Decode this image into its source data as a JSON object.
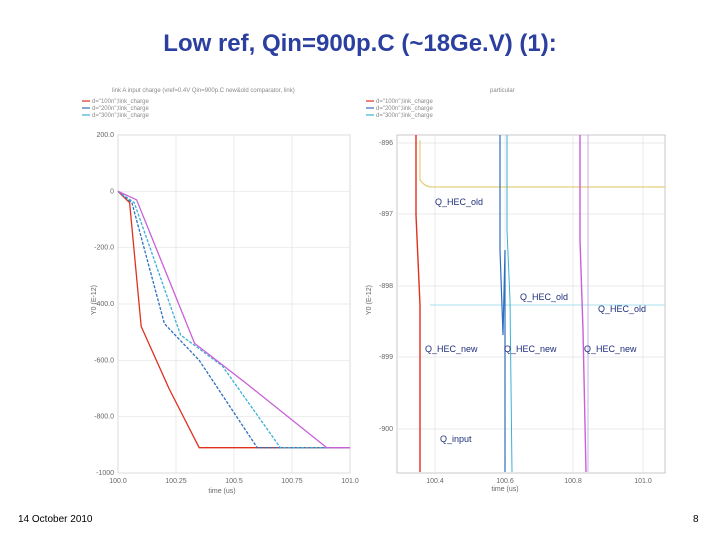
{
  "slide": {
    "title": "Low ref, Qin=900p.C (~18Ge.V) (1):",
    "date": "14 October 2010",
    "page": "8"
  },
  "chart_data": [
    {
      "type": "line",
      "title": "link A input charge (vref=0.4V Qin=900p.C new&old comparator, link)",
      "xlabel": "time (us)",
      "ylabel": "Y0 (E-12)",
      "xlim": [
        100.0,
        101.0
      ],
      "ylim": [
        -1000,
        200
      ],
      "x_ticks": [
        "100.0",
        "100.25",
        "100.5",
        "100.75",
        "101.0"
      ],
      "y_ticks": [
        "200.0",
        "0",
        "-200.0",
        "-400.0",
        "-600.0",
        "-800.0",
        "-1000"
      ],
      "grid": true,
      "legend_position": "top-left",
      "series": [
        {
          "name": "d=\"100n\";link_charge",
          "color": "#e0301e",
          "x": [
            100.0,
            100.05,
            100.1,
            100.22,
            100.35,
            101.0
          ],
          "y": [
            0,
            -40,
            -480,
            -700,
            -910,
            -910
          ]
        },
        {
          "name": "d=\"200n\";link_charge",
          "color": "#2e6fbf",
          "x": [
            100.0,
            100.06,
            100.2,
            100.35,
            100.6,
            101.0
          ],
          "y": [
            0,
            -40,
            -470,
            -600,
            -910,
            -910
          ]
        },
        {
          "name": "d=\"300n\";link_charge",
          "color": "#3bb0d6",
          "x": [
            100.0,
            100.07,
            100.27,
            100.45,
            100.7,
            101.0
          ],
          "y": [
            0,
            -40,
            -510,
            -620,
            -910,
            -910
          ]
        },
        {
          "name": "",
          "color": "#c85fd9",
          "x": [
            100.0,
            100.08,
            100.33,
            100.55,
            100.9,
            101.0
          ],
          "y": [
            0,
            -30,
            -540,
            -680,
            -910,
            -910
          ]
        }
      ]
    },
    {
      "type": "line",
      "title": "particular",
      "xlabel": "time (us)",
      "ylabel": "Y0 (E-12)",
      "xlim": [
        100.0,
        101.0
      ],
      "x_ticks": [
        "100.4",
        "100.6",
        "100.8",
        "101.0"
      ],
      "y_ticks": [
        "-896",
        "-897",
        "-898",
        "-899",
        "-900"
      ],
      "grid": true,
      "legend_position": "top-left",
      "series": [
        {
          "name": "d=\"100n\";link_charge",
          "color": "#e0301e"
        },
        {
          "name": "d=\"200n\";link_charge",
          "color": "#2e6fbf"
        },
        {
          "name": "d=\"300n\";link_charge",
          "color": "#3bb0d6"
        },
        {
          "name": "",
          "color": "#e6cf7a"
        }
      ],
      "annotations": [
        "Q_HEC_old",
        "Q_HEC_old",
        "Q_HEC_old",
        "Q_HEC_new",
        "Q_HEC_new",
        "Q_HEC_new",
        "Q_input"
      ]
    }
  ]
}
